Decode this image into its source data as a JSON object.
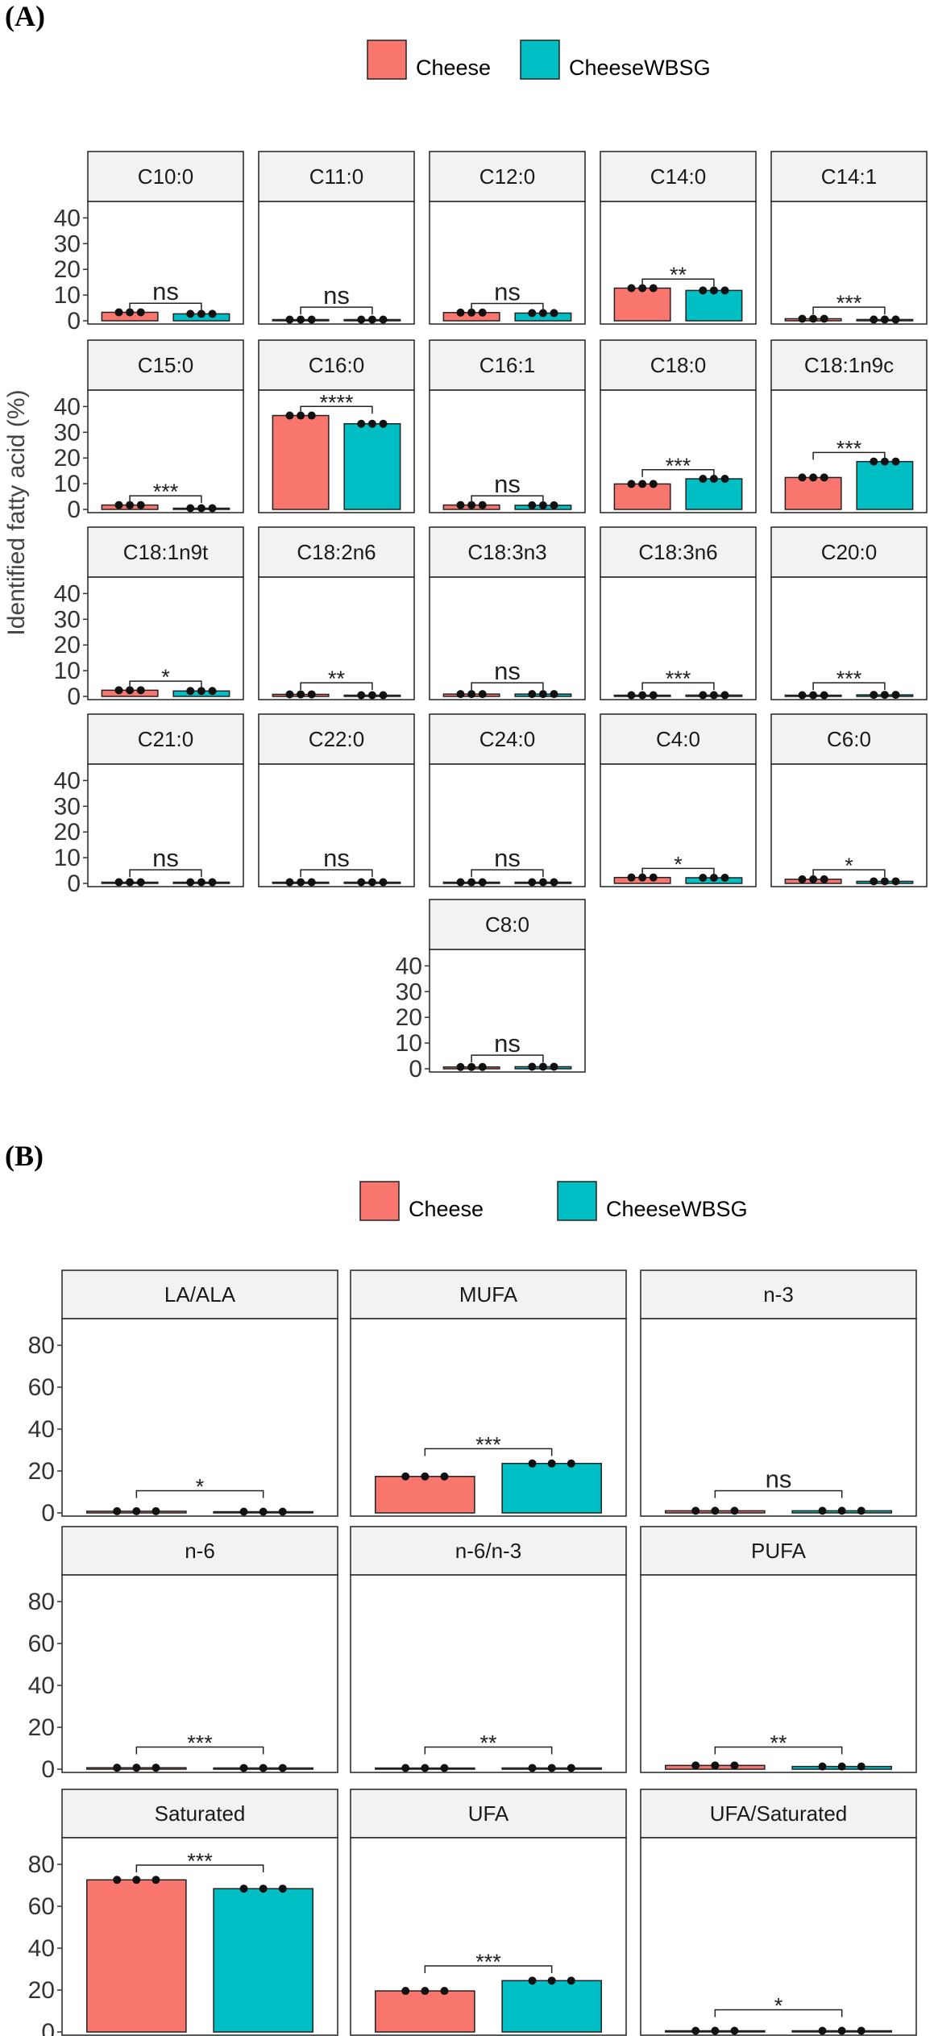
{
  "colors": {
    "Cheese": "#F8766D",
    "CheeseWBSG": "#00BFC4",
    "strip": "#f2f2f2"
  },
  "chart_data": [
    {
      "panel_label": "(A)",
      "type": "bar",
      "ylabel": "Identified fatty acid (%)",
      "ylim": [
        0,
        44
      ],
      "yticks": [
        0,
        10,
        20,
        30,
        40
      ],
      "legend": {
        "position": "top",
        "entries": [
          "Cheese",
          "CheeseWBSG"
        ]
      },
      "categories": [
        "Cheese",
        "CheeseWBSG"
      ],
      "facets": [
        {
          "label": "C10:0",
          "values": [
            3.3,
            2.7
          ],
          "sig": "ns"
        },
        {
          "label": "C11:0",
          "values": [
            0.1,
            0.1
          ],
          "sig": "ns"
        },
        {
          "label": "C12:0",
          "values": [
            3.2,
            3.0
          ],
          "sig": "ns"
        },
        {
          "label": "C14:0",
          "values": [
            12.7,
            11.8
          ],
          "sig": "**"
        },
        {
          "label": "C14:1",
          "values": [
            0.8,
            0.5
          ],
          "sig": "***"
        },
        {
          "label": "C15:0",
          "values": [
            1.7,
            0.3
          ],
          "sig": "***"
        },
        {
          "label": "C16:0",
          "values": [
            36.5,
            33.3
          ],
          "sig": "****"
        },
        {
          "label": "C16:1",
          "values": [
            1.7,
            1.6
          ],
          "sig": "ns"
        },
        {
          "label": "C18:0",
          "values": [
            9.9,
            11.9
          ],
          "sig": "***"
        },
        {
          "label": "C18:1n9c",
          "values": [
            12.4,
            18.6
          ],
          "sig": "***"
        },
        {
          "label": "C18:1n9t",
          "values": [
            2.4,
            2.1
          ],
          "sig": "*"
        },
        {
          "label": "C18:2n6",
          "values": [
            0.8,
            0.2
          ],
          "sig": "**"
        },
        {
          "label": "C18:3n3",
          "values": [
            0.9,
            0.9
          ],
          "sig": "ns"
        },
        {
          "label": "C18:3n6",
          "values": [
            0.2,
            0.5
          ],
          "sig": "***"
        },
        {
          "label": "C20:0",
          "values": [
            0.3,
            0.6
          ],
          "sig": "***"
        },
        {
          "label": "C21:0",
          "values": [
            0.2,
            0.4
          ],
          "sig": "ns"
        },
        {
          "label": "C22:0",
          "values": [
            0.3,
            0.2
          ],
          "sig": "ns"
        },
        {
          "label": "C24:0",
          "values": [
            0.2,
            0.3
          ],
          "sig": "ns"
        },
        {
          "label": "C4:0",
          "values": [
            2.3,
            2.2
          ],
          "sig": "*"
        },
        {
          "label": "C6:0",
          "values": [
            1.6,
            0.8
          ],
          "sig": "*"
        },
        {
          "label": "C8:0",
          "values": [
            0.7,
            0.8
          ],
          "sig": "ns"
        }
      ]
    },
    {
      "panel_label": "(B)",
      "type": "bar",
      "ylabel": "",
      "ylim": [
        0,
        88
      ],
      "yticks": [
        0,
        20,
        40,
        60,
        80
      ],
      "legend": {
        "position": "top",
        "entries": [
          "Cheese",
          "CheeseWBSG"
        ]
      },
      "categories": [
        "Cheese",
        "CheeseWBSG"
      ],
      "facets": [
        {
          "label": "LA/ALA",
          "values": [
            0.8,
            0.1
          ],
          "sig": "*"
        },
        {
          "label": "MUFA",
          "values": [
            17.4,
            23.6
          ],
          "sig": "***"
        },
        {
          "label": "n-3",
          "values": [
            1.0,
            1.0
          ],
          "sig": "ns"
        },
        {
          "label": "n-6",
          "values": [
            0.7,
            0.6
          ],
          "sig": "***"
        },
        {
          "label": "n-6/n-3",
          "values": [
            0.5,
            0.6
          ],
          "sig": "**"
        },
        {
          "label": "PUFA",
          "values": [
            1.8,
            1.3
          ],
          "sig": "**"
        },
        {
          "label": "Saturated",
          "values": [
            72.6,
            68.4
          ],
          "sig": "***"
        },
        {
          "label": "UFA",
          "values": [
            19.6,
            24.5
          ],
          "sig": "***"
        },
        {
          "label": "UFA/Saturated",
          "values": [
            0.27,
            0.36
          ],
          "sig": "*"
        }
      ]
    }
  ]
}
